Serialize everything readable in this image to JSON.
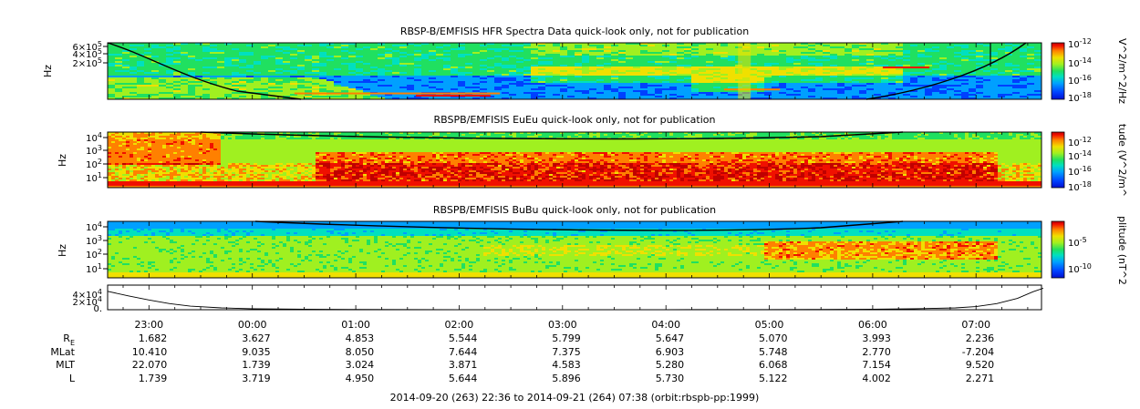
{
  "chart_data": [
    {
      "type": "heatmap",
      "title": "RBSP-B/EMFISIS  HFR Spectra Data quick-look only, not for publication",
      "ylabel": "Hz",
      "scale": "log",
      "y_ticks": [
        {
          "base": "6×10",
          "exp": "5"
        },
        {
          "base": "4×10",
          "exp": "5"
        },
        {
          "base": "2×10",
          "exp": "5"
        }
      ],
      "colorbar": {
        "label": "V^2/m^2/Hz",
        "ticks": [
          {
            "base": "10",
            "exp": "-12"
          },
          {
            "base": "10",
            "exp": "-14"
          },
          {
            "base": "10",
            "exp": "-16"
          },
          {
            "base": "10",
            "exp": "-18"
          }
        ]
      }
    },
    {
      "type": "heatmap",
      "title": "RBSPB/EMFISIS  EuEu quick-look only, not for publication",
      "ylabel": "Hz",
      "scale": "log",
      "y_ticks": [
        {
          "base": "10",
          "exp": "4"
        },
        {
          "base": "10",
          "exp": "3"
        },
        {
          "base": "10",
          "exp": "2"
        },
        {
          "base": "10",
          "exp": "1"
        }
      ],
      "colorbar": {
        "label": "tude (V^2/m^",
        "ticks": [
          {
            "base": "10",
            "exp": "-12"
          },
          {
            "base": "10",
            "exp": "-14"
          },
          {
            "base": "10",
            "exp": "-16"
          },
          {
            "base": "10",
            "exp": "-18"
          }
        ]
      }
    },
    {
      "type": "heatmap",
      "title": "RBSPB/EMFISIS  BuBu quick-look only, not for publication",
      "ylabel": "Hz",
      "scale": "log",
      "y_ticks": [
        {
          "base": "10",
          "exp": "4"
        },
        {
          "base": "10",
          "exp": "3"
        },
        {
          "base": "10",
          "exp": "2"
        },
        {
          "base": "10",
          "exp": "1"
        }
      ],
      "colorbar": {
        "label": "plitude (nT^2",
        "ticks": [
          {
            "base": "10",
            "exp": "-5"
          },
          {
            "base": "10",
            "exp": "-10"
          }
        ]
      }
    },
    {
      "type": "line",
      "title": "",
      "y_ticks": [
        {
          "base": "4×10",
          "exp": "4"
        },
        {
          "base": "2×10",
          "exp": "4"
        },
        {
          "base": "0.",
          "exp": ""
        }
      ],
      "x": [
        22.6,
        22.8,
        23.0,
        23.2,
        23.4,
        23.7,
        24.0,
        24.5,
        25.0,
        26.0,
        27.0,
        28.0,
        29.0,
        29.5,
        30.0,
        30.4,
        30.8,
        31.0,
        31.2,
        31.4,
        31.55,
        31.65
      ],
      "values": [
        36000,
        27000,
        19000,
        12000,
        7000,
        3500,
        1800,
        900,
        500,
        250,
        200,
        220,
        280,
        500,
        900,
        1800,
        3500,
        6000,
        12000,
        22000,
        35000,
        42000
      ]
    }
  ],
  "x_axis": {
    "tick_labels": [
      "23:00",
      "00:00",
      "01:00",
      "02:00",
      "03:00",
      "04:00",
      "05:00",
      "06:00",
      "07:00"
    ]
  },
  "ephemeris": {
    "rows": [
      {
        "label": "R",
        "sub": "E",
        "values": [
          "1.682",
          "3.627",
          "4.853",
          "5.544",
          "5.799",
          "5.647",
          "5.070",
          "3.993",
          "2.236"
        ]
      },
      {
        "label": "MLat",
        "sub": "",
        "values": [
          "10.410",
          "9.035",
          "8.050",
          "7.644",
          "7.375",
          "6.903",
          "5.748",
          "2.770",
          "-7.204"
        ]
      },
      {
        "label": "MLT",
        "sub": "",
        "values": [
          "22.070",
          "1.739",
          "3.024",
          "3.871",
          "4.583",
          "5.280",
          "6.068",
          "7.154",
          "9.520"
        ]
      },
      {
        "label": "L",
        "sub": "",
        "values": [
          "1.739",
          "3.719",
          "4.950",
          "5.644",
          "5.896",
          "5.730",
          "5.122",
          "4.002",
          "2.271"
        ]
      }
    ]
  },
  "footer": "2014-09-20 (263) 22:36 to 2014-09-21 (264) 07:38 (orbit:rbspb-pp:1999)",
  "colors": {
    "cmap": [
      "#0010d0",
      "#0040ff",
      "#00a0ff",
      "#00e0c0",
      "#20e060",
      "#a0f020",
      "#f0e000",
      "#ff8000",
      "#f01000",
      "#c00000"
    ]
  }
}
